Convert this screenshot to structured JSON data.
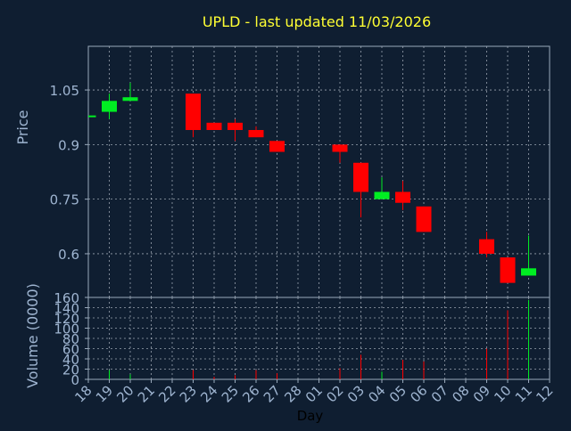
{
  "title": "UPLD - last updated 11/03/2026",
  "colors": {
    "background": "#0f1e31",
    "axis": "#9aa9bb",
    "tick_text": "#9fb5d1",
    "title": "#ffff33",
    "grid": "#c8d0da",
    "up": "#00ee22",
    "down": "#ff0000"
  },
  "chart_data": {
    "type": "candlestick",
    "title": "UPLD - last updated 11/03/2026",
    "ylabel": "Price",
    "volume_ylabel": "Volume (0000)",
    "xlabel": "Day",
    "x_ticks": [
      "18",
      "19",
      "20",
      "21",
      "22",
      "23",
      "24",
      "25",
      "26",
      "27",
      "28",
      "01",
      "02",
      "03",
      "04",
      "05",
      "06",
      "07",
      "08",
      "09",
      "10",
      "11",
      "12"
    ],
    "price_ylim": [
      0.48,
      1.17
    ],
    "price_ticks": [
      0.6,
      0.75,
      0.9,
      1.05
    ],
    "price_tick_labels": [
      "0.6",
      "0.75",
      "0.9",
      "1.05"
    ],
    "volume_ylim": [
      0,
      160
    ],
    "volume_ticks": [
      0,
      20,
      40,
      60,
      80,
      100,
      120,
      140,
      160
    ],
    "grid": true,
    "candles": [
      {
        "day": "18",
        "open": 0.98,
        "high": 0.98,
        "low": 0.98,
        "close": 0.98,
        "volume": 0
      },
      {
        "day": "19",
        "open": 0.99,
        "high": 1.04,
        "low": 0.97,
        "close": 1.02,
        "volume": 18
      },
      {
        "day": "20",
        "open": 1.02,
        "high": 1.07,
        "low": 1.02,
        "close": 1.03,
        "volume": 10
      },
      {
        "day": "23",
        "open": 1.04,
        "high": 1.04,
        "low": 0.92,
        "close": 0.94,
        "volume": 18
      },
      {
        "day": "24",
        "open": 0.96,
        "high": 0.96,
        "low": 0.94,
        "close": 0.94,
        "volume": 5
      },
      {
        "day": "25",
        "open": 0.96,
        "high": 0.97,
        "low": 0.91,
        "close": 0.94,
        "volume": 8
      },
      {
        "day": "26",
        "open": 0.94,
        "high": 0.95,
        "low": 0.92,
        "close": 0.92,
        "volume": 18
      },
      {
        "day": "27",
        "open": 0.91,
        "high": 0.91,
        "low": 0.88,
        "close": 0.88,
        "volume": 12
      },
      {
        "day": "02",
        "open": 0.9,
        "high": 0.9,
        "low": 0.85,
        "close": 0.88,
        "volume": 22
      },
      {
        "day": "03",
        "open": 0.85,
        "high": 0.85,
        "low": 0.7,
        "close": 0.77,
        "volume": 48
      },
      {
        "day": "04",
        "open": 0.75,
        "high": 0.81,
        "low": 0.75,
        "close": 0.77,
        "volume": 15
      },
      {
        "day": "05",
        "open": 0.77,
        "high": 0.8,
        "low": 0.72,
        "close": 0.74,
        "volume": 38
      },
      {
        "day": "06",
        "open": 0.73,
        "high": 0.73,
        "low": 0.66,
        "close": 0.66,
        "volume": 35
      },
      {
        "day": "09",
        "open": 0.64,
        "high": 0.66,
        "low": 0.59,
        "close": 0.6,
        "volume": 60
      },
      {
        "day": "10",
        "open": 0.59,
        "high": 0.59,
        "low": 0.52,
        "close": 0.52,
        "volume": 135
      },
      {
        "day": "11",
        "open": 0.54,
        "high": 0.65,
        "low": 0.54,
        "close": 0.56,
        "volume": 155
      }
    ]
  }
}
